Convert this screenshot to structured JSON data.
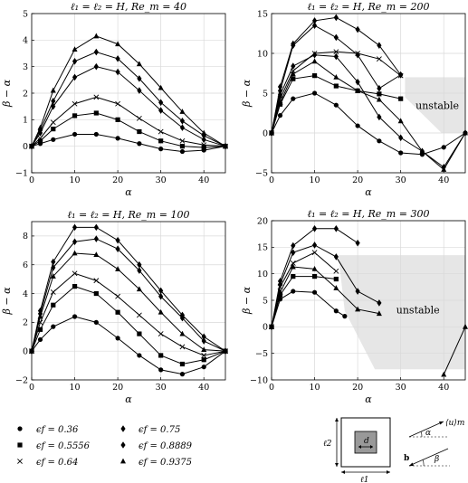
{
  "chart_data": [
    {
      "type": "line",
      "title": "ℓ₁ = ℓ₂ = H, Re_m = 40",
      "xlabel": "α",
      "ylabel": "β − α",
      "xlim": [
        0,
        45
      ],
      "ylim": [
        -1,
        5
      ],
      "xticks": [
        "0",
        "10",
        "20",
        "30",
        "40"
      ],
      "yticks": [
        "−1",
        "0",
        "1",
        "2",
        "3",
        "4",
        "5"
      ],
      "grid": true,
      "series": [
        {
          "marker": "circle",
          "x": [
            0,
            2,
            5,
            10,
            15,
            20,
            25,
            30,
            35,
            40,
            45
          ],
          "y": [
            0,
            0.1,
            0.25,
            0.45,
            0.45,
            0.3,
            0.1,
            -0.1,
            -0.2,
            -0.15,
            0
          ]
        },
        {
          "marker": "square",
          "x": [
            0,
            2,
            5,
            10,
            15,
            20,
            25,
            30,
            35,
            40,
            45
          ],
          "y": [
            0,
            0.2,
            0.65,
            1.15,
            1.25,
            1.0,
            0.55,
            0.2,
            0.0,
            -0.05,
            0
          ]
        },
        {
          "marker": "cross",
          "x": [
            0,
            2,
            5,
            10,
            15,
            20,
            25,
            30,
            35,
            40,
            45
          ],
          "y": [
            0,
            0.3,
            0.9,
            1.6,
            1.85,
            1.6,
            1.05,
            0.55,
            0.2,
            0.05,
            0
          ]
        },
        {
          "marker": "diamond",
          "x": [
            0,
            2,
            5,
            10,
            15,
            20,
            25,
            30,
            35,
            40,
            45
          ],
          "y": [
            0,
            0.5,
            1.5,
            2.6,
            3.0,
            2.8,
            2.1,
            1.35,
            0.7,
            0.25,
            0
          ]
        },
        {
          "marker": "diamond",
          "x": [
            0,
            2,
            5,
            10,
            15,
            20,
            25,
            30,
            35,
            40,
            45
          ],
          "y": [
            0,
            0.6,
            1.7,
            3.2,
            3.55,
            3.3,
            2.55,
            1.65,
            0.95,
            0.4,
            0
          ]
        },
        {
          "marker": "triangle",
          "x": [
            0,
            2,
            5,
            10,
            15,
            20,
            25,
            30,
            35,
            40,
            45
          ],
          "y": [
            0,
            0.7,
            2.1,
            3.65,
            4.15,
            3.85,
            3.1,
            2.2,
            1.3,
            0.5,
            0
          ]
        }
      ]
    },
    {
      "type": "line",
      "title": "ℓ₁ = ℓ₂ = H, Re_m = 200",
      "xlabel": "α",
      "ylabel": "β − α",
      "xlim": [
        0,
        45
      ],
      "ylim": [
        -5,
        15
      ],
      "xticks": [
        "0",
        "10",
        "20",
        "30",
        "40"
      ],
      "yticks": [
        "−5",
        "0",
        "5",
        "10",
        "15"
      ],
      "grid": true,
      "unstable_label": "unstable",
      "series": [
        {
          "marker": "circle",
          "x": [
            0,
            2,
            5,
            10,
            15,
            20,
            25,
            30,
            35,
            40,
            45
          ],
          "y": [
            0,
            2.2,
            4.3,
            5.0,
            3.5,
            0.9,
            -1.0,
            -2.5,
            -2.7,
            -1.8,
            0
          ]
        },
        {
          "marker": "square",
          "x": [
            0,
            2,
            5,
            10,
            15,
            20,
            25,
            30
          ],
          "y": [
            0,
            3.6,
            6.8,
            7.2,
            5.9,
            5.3,
            4.9,
            4.3
          ]
        },
        {
          "marker": "triangle",
          "x": [
            0,
            2,
            5,
            10,
            15,
            20,
            25,
            30,
            35,
            40,
            45
          ],
          "y": [
            0,
            3.8,
            7.4,
            9.0,
            7.0,
            5.3,
            4.2,
            1.5,
            -2.3,
            -4.6,
            0
          ]
        },
        {
          "marker": "cross",
          "x": [
            0,
            2,
            5,
            10,
            15,
            20,
            25,
            30
          ],
          "y": [
            0,
            4.3,
            7.8,
            10.0,
            10.2,
            10.0,
            9.3,
            7.2
          ]
        },
        {
          "marker": "diamond",
          "x": [
            0,
            2,
            5,
            10,
            15,
            20,
            25,
            30,
            35,
            40,
            45
          ],
          "y": [
            0,
            4.8,
            8.4,
            9.8,
            9.6,
            6.4,
            2.0,
            -0.6,
            -2.3,
            -4.3,
            0
          ]
        },
        {
          "marker": "diamond",
          "x": [
            0,
            2,
            5,
            10,
            15,
            20,
            25,
            30
          ],
          "y": [
            0,
            5.3,
            11.0,
            13.5,
            12.0,
            9.8,
            5.6,
            7.3
          ]
        },
        {
          "marker": "diamond",
          "x": [
            0,
            2,
            5,
            10,
            15,
            20,
            25,
            30
          ],
          "y": [
            0,
            5.8,
            11.2,
            14.1,
            14.5,
            13.0,
            11.0,
            7.3
          ]
        }
      ]
    },
    {
      "type": "line",
      "title": "ℓ₁ = ℓ₂ = H, Re_m = 100",
      "xlabel": "α",
      "ylabel": "β − α",
      "xlim": [
        0,
        45
      ],
      "ylim": [
        -2,
        9
      ],
      "xticks": [
        "0",
        "10",
        "20",
        "30",
        "40"
      ],
      "yticks": [
        "−2",
        "0",
        "2",
        "4",
        "6",
        "8"
      ],
      "grid": true,
      "series": [
        {
          "marker": "circle",
          "x": [
            0,
            2,
            5,
            10,
            15,
            20,
            25,
            30,
            35,
            40,
            45
          ],
          "y": [
            0,
            0.8,
            1.7,
            2.4,
            2.0,
            0.9,
            -0.3,
            -1.3,
            -1.6,
            -1.1,
            0
          ]
        },
        {
          "marker": "square",
          "x": [
            0,
            2,
            5,
            10,
            15,
            20,
            25,
            30,
            35,
            40,
            45
          ],
          "y": [
            0,
            1.5,
            3.2,
            4.5,
            4.0,
            2.7,
            1.2,
            -0.3,
            -0.9,
            -0.6,
            0
          ]
        },
        {
          "marker": "cross",
          "x": [
            0,
            2,
            5,
            10,
            15,
            20,
            25,
            30,
            35,
            40,
            45
          ],
          "y": [
            0,
            2.0,
            4.1,
            5.4,
            4.9,
            3.8,
            2.5,
            1.2,
            0.3,
            -0.3,
            0
          ]
        },
        {
          "marker": "triangle",
          "x": [
            0,
            2,
            5,
            10,
            15,
            20,
            25,
            30,
            35,
            40,
            45
          ],
          "y": [
            0,
            2.4,
            5.2,
            6.8,
            6.7,
            5.7,
            4.3,
            2.7,
            1.2,
            0.1,
            0
          ]
        },
        {
          "marker": "diamond",
          "x": [
            0,
            2,
            5,
            10,
            15,
            20,
            25,
            30,
            35,
            40,
            45
          ],
          "y": [
            0,
            2.6,
            5.8,
            7.6,
            7.8,
            7.1,
            5.6,
            3.8,
            2.3,
            0.7,
            0
          ]
        },
        {
          "marker": "diamond",
          "x": [
            0,
            2,
            5,
            10,
            15,
            20,
            25,
            30,
            35,
            40,
            45
          ],
          "y": [
            0,
            2.8,
            6.2,
            8.6,
            8.6,
            7.7,
            6.0,
            4.2,
            2.5,
            1.0,
            0
          ]
        }
      ]
    },
    {
      "type": "line",
      "title": "ℓ₁ = ℓ₂ = H, Re_m = 300",
      "xlabel": "α",
      "ylabel": "β − α",
      "xlim": [
        0,
        45
      ],
      "ylim": [
        -10,
        20
      ],
      "xticks": [
        "0",
        "10",
        "20",
        "30",
        "40"
      ],
      "yticks": [
        "−10",
        "−5",
        "0",
        "5",
        "10",
        "15",
        "20"
      ],
      "grid": true,
      "unstable_label": "unstable",
      "series": [
        {
          "marker": "circle",
          "x": [
            0,
            2,
            5,
            10,
            15,
            17
          ],
          "y": [
            0,
            5.2,
            6.7,
            6.5,
            3.0,
            2.0
          ]
        },
        {
          "marker": "square",
          "x": [
            0,
            2,
            5,
            10,
            15
          ],
          "y": [
            0,
            6.0,
            9.5,
            9.5,
            9.0
          ]
        },
        {
          "marker": "triangle",
          "x": [
            0,
            2,
            5,
            10,
            15,
            20,
            25
          ],
          "y": [
            0,
            6.5,
            11.3,
            10.9,
            7.3,
            3.3,
            2.5
          ]
        },
        {
          "marker": "cross",
          "x": [
            0,
            2,
            5,
            10,
            15
          ],
          "y": [
            0,
            7.5,
            12.0,
            14.0,
            10.5
          ]
        },
        {
          "marker": "diamond",
          "x": [
            0,
            2,
            5,
            10,
            15,
            20,
            25
          ],
          "y": [
            0,
            8.0,
            14.0,
            15.4,
            13.2,
            6.7,
            4.5
          ]
        },
        {
          "marker": "diamond",
          "x": [
            0,
            2,
            5,
            10,
            15,
            20
          ],
          "y": [
            0,
            8.6,
            15.3,
            18.5,
            18.5,
            15.8
          ]
        },
        {
          "marker": "triangle",
          "x": [
            40,
            45
          ],
          "y": [
            -9.0,
            0
          ]
        }
      ]
    }
  ],
  "legend": [
    {
      "marker": "circle",
      "label": "ϵf = 0.36"
    },
    {
      "marker": "square",
      "label": "ϵf = 0.5556"
    },
    {
      "marker": "cross",
      "label": "ϵf = 0.64"
    },
    {
      "marker": "diamond",
      "label": "ϵf = 0.75"
    },
    {
      "marker": "diamond",
      "label": "ϵf = 0.8889"
    },
    {
      "marker": "triangle",
      "label": "ϵf = 0.9375"
    }
  ],
  "diagram": {
    "l1": "ℓ1",
    "l2": "ℓ2",
    "d": "d",
    "u": "⟨u⟩m",
    "alpha": "α",
    "b": "b",
    "beta": "β"
  },
  "colors": {
    "line": "#000000",
    "grid": "#d9d9d9",
    "unstable_fill": "#e6e6e6",
    "obstacle": "#999999"
  }
}
